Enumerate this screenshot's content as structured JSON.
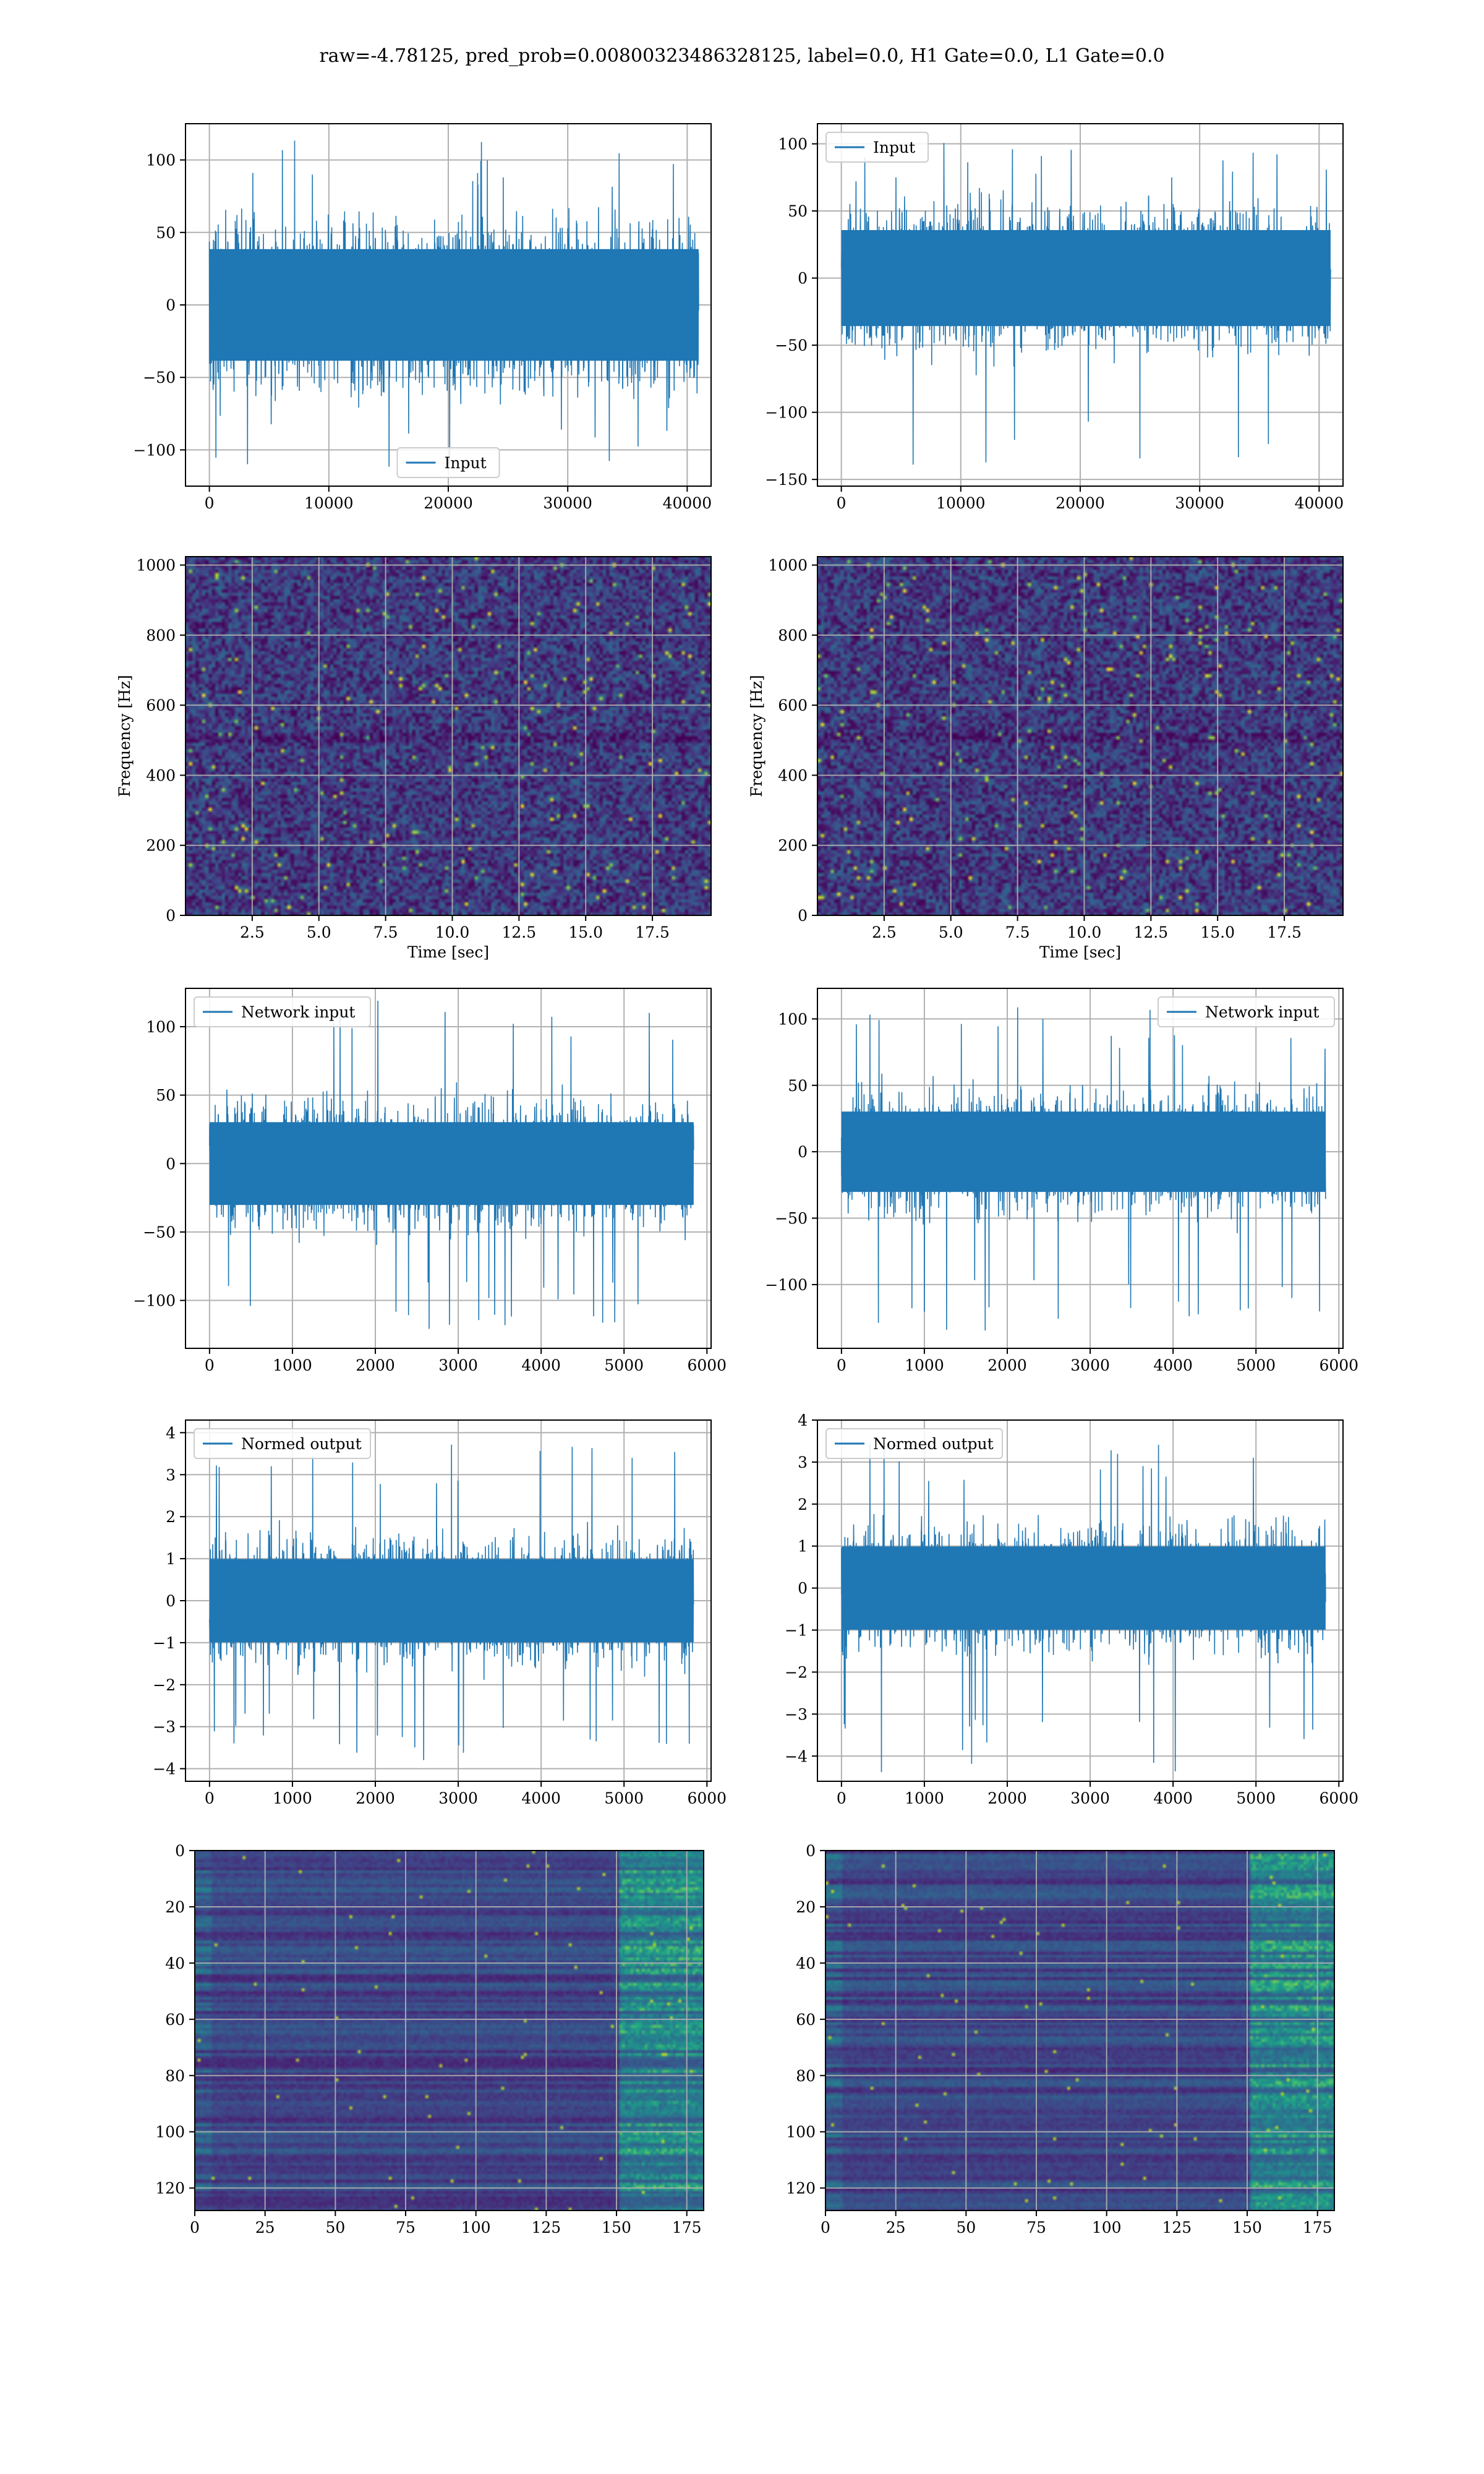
{
  "figure": {
    "suptitle": "raw=-4.78125, pred_prob=0.00800323486328125, label=0.0, H1 Gate=0.0, L1 Gate=0.0"
  },
  "colors": {
    "series": "#1f77b4",
    "grid": "#b0b0b0",
    "heat_low": "#440154",
    "heat_mid": "#31688e",
    "heat_hi": "#fde725"
  },
  "chart_data": [
    {
      "id": "r0c0",
      "type": "line",
      "legend": "Input",
      "legend_loc": "lower center",
      "xlim": [
        -2000,
        42000
      ],
      "ylim": [
        -125,
        125
      ],
      "xticks": [
        0,
        10000,
        20000,
        30000,
        40000
      ],
      "yticks": [
        -100,
        -50,
        0,
        50,
        100
      ],
      "xticklabels": [
        "0",
        "10000",
        "20000",
        "30000",
        "40000"
      ],
      "yticklabels": [
        "−100",
        "−50",
        "0",
        "50",
        "100"
      ],
      "xlabel": "",
      "ylabel": "",
      "grid": true,
      "x_range": [
        0,
        40960
      ],
      "envelope": {
        "typical_max": 70,
        "typical_min": -70,
        "peak_max": 116,
        "peak_min": -117
      }
    },
    {
      "id": "r0c1",
      "type": "line",
      "legend": "Input",
      "legend_loc": "upper left",
      "xlim": [
        -2000,
        42000
      ],
      "ylim": [
        -155,
        115
      ],
      "xticks": [
        0,
        10000,
        20000,
        30000,
        40000
      ],
      "yticks": [
        -150,
        -100,
        -50,
        0,
        50,
        100
      ],
      "xticklabels": [
        "0",
        "10000",
        "20000",
        "30000",
        "40000"
      ],
      "yticklabels": [
        "−150",
        "−100",
        "−50",
        "0",
        "50",
        "100"
      ],
      "xlabel": "",
      "ylabel": "",
      "grid": true,
      "x_range": [
        0,
        40960
      ],
      "envelope": {
        "typical_max": 65,
        "typical_min": -65,
        "peak_max": 102,
        "peak_min": -140
      }
    },
    {
      "id": "r1c0",
      "type": "heatmap",
      "variant": "spectrogram",
      "xlim": [
        0,
        19.7
      ],
      "ylim": [
        0,
        1024
      ],
      "xticks": [
        2.5,
        5.0,
        7.5,
        10.0,
        12.5,
        15.0,
        17.5
      ],
      "yticks": [
        0,
        200,
        400,
        600,
        800,
        1000
      ],
      "xticklabels": [
        "2.5",
        "5.0",
        "7.5",
        "10.0",
        "12.5",
        "15.0",
        "17.5"
      ],
      "yticklabels": [
        "0",
        "200",
        "400",
        "600",
        "800",
        "1000"
      ],
      "xlabel": "Time [sec]",
      "ylabel": "Frequency [Hz]",
      "grid": true,
      "colormap": "viridis"
    },
    {
      "id": "r1c1",
      "type": "heatmap",
      "variant": "spectrogram",
      "xlim": [
        0,
        19.7
      ],
      "ylim": [
        0,
        1024
      ],
      "xticks": [
        2.5,
        5.0,
        7.5,
        10.0,
        12.5,
        15.0,
        17.5
      ],
      "yticks": [
        0,
        200,
        400,
        600,
        800,
        1000
      ],
      "xticklabels": [
        "2.5",
        "5.0",
        "7.5",
        "10.0",
        "12.5",
        "15.0",
        "17.5"
      ],
      "yticklabels": [
        "0",
        "200",
        "400",
        "600",
        "800",
        "1000"
      ],
      "xlabel": "Time [sec]",
      "ylabel": "Frequency [Hz]",
      "grid": true,
      "colormap": "viridis"
    },
    {
      "id": "r2c0",
      "type": "line",
      "legend": "Network input",
      "legend_loc": "upper left",
      "xlim": [
        -290,
        6050
      ],
      "ylim": [
        -135,
        128
      ],
      "xticks": [
        0,
        1000,
        2000,
        3000,
        4000,
        5000,
        6000
      ],
      "yticks": [
        -100,
        -50,
        0,
        50,
        100
      ],
      "xticklabels": [
        "0",
        "1000",
        "2000",
        "3000",
        "4000",
        "5000",
        "6000"
      ],
      "yticklabels": [
        "−100",
        "−50",
        "0",
        "50",
        "100"
      ],
      "xlabel": "",
      "ylabel": "",
      "grid": true,
      "x_range": [
        0,
        5840
      ],
      "envelope": {
        "typical_max": 55,
        "typical_min": -55,
        "peak_max": 121,
        "peak_min": -122
      }
    },
    {
      "id": "r2c1",
      "type": "line",
      "legend": "Network input",
      "legend_loc": "upper right",
      "xlim": [
        -290,
        6050
      ],
      "ylim": [
        -148,
        123
      ],
      "xticks": [
        0,
        1000,
        2000,
        3000,
        4000,
        5000,
        6000
      ],
      "yticks": [
        -100,
        -50,
        0,
        50,
        100
      ],
      "xticklabels": [
        "0",
        "1000",
        "2000",
        "3000",
        "4000",
        "5000",
        "6000"
      ],
      "yticklabels": [
        "−100",
        "−50",
        "0",
        "50",
        "100"
      ],
      "xlabel": "",
      "ylabel": "",
      "grid": true,
      "x_range": [
        0,
        5840
      ],
      "envelope": {
        "typical_max": 55,
        "typical_min": -55,
        "peak_max": 110,
        "peak_min": -137
      }
    },
    {
      "id": "r3c0",
      "type": "line",
      "legend": "Normed output",
      "legend_loc": "upper left",
      "xlim": [
        -290,
        6050
      ],
      "ylim": [
        -4.3,
        4.3
      ],
      "xticks": [
        0,
        1000,
        2000,
        3000,
        4000,
        5000,
        6000
      ],
      "yticks": [
        -4,
        -3,
        -2,
        -1,
        0,
        1,
        2,
        3,
        4
      ],
      "xticklabels": [
        "0",
        "1000",
        "2000",
        "3000",
        "4000",
        "5000",
        "6000"
      ],
      "yticklabels": [
        "−4",
        "−3",
        "−2",
        "−1",
        "0",
        "1",
        "2",
        "3",
        "4"
      ],
      "xlabel": "",
      "ylabel": "",
      "grid": true,
      "x_range": [
        0,
        5840
      ],
      "envelope": {
        "typical_max": 1.8,
        "typical_min": -1.8,
        "peak_max": 3.9,
        "peak_min": -3.8
      }
    },
    {
      "id": "r3c1",
      "type": "line",
      "legend": "Normed output",
      "legend_loc": "upper left",
      "xlim": [
        -290,
        6050
      ],
      "ylim": [
        -4.6,
        4.0
      ],
      "xticks": [
        0,
        1000,
        2000,
        3000,
        4000,
        5000,
        6000
      ],
      "yticks": [
        -4,
        -3,
        -2,
        -1,
        0,
        1,
        2,
        3,
        4
      ],
      "xticklabels": [
        "0",
        "1000",
        "2000",
        "3000",
        "4000",
        "5000",
        "6000"
      ],
      "yticklabels": [
        "−4",
        "−3",
        "−2",
        "−1",
        "0",
        "1",
        "2",
        "3",
        "4"
      ],
      "xlabel": "",
      "ylabel": "",
      "grid": true,
      "x_range": [
        0,
        5840
      ],
      "envelope": {
        "typical_max": 1.8,
        "typical_min": -1.8,
        "peak_max": 3.6,
        "peak_min": -4.4
      }
    },
    {
      "id": "r4c0",
      "type": "heatmap",
      "variant": "features",
      "xlim": [
        0,
        181
      ],
      "ylim": [
        128,
        0
      ],
      "rows": 128,
      "cols": 181,
      "xticks": [
        0,
        25,
        50,
        75,
        100,
        125,
        150,
        175
      ],
      "yticks": [
        0,
        20,
        40,
        60,
        80,
        100,
        120
      ],
      "xticklabels": [
        "0",
        "25",
        "50",
        "75",
        "100",
        "125",
        "150",
        "175"
      ],
      "yticklabels": [
        "0",
        "20",
        "40",
        "60",
        "80",
        "100",
        "120"
      ],
      "xlabel": "",
      "ylabel": "",
      "grid": true,
      "colormap": "viridis"
    },
    {
      "id": "r4c1",
      "type": "heatmap",
      "variant": "features",
      "xlim": [
        0,
        181
      ],
      "ylim": [
        128,
        0
      ],
      "rows": 128,
      "cols": 181,
      "xticks": [
        0,
        25,
        50,
        75,
        100,
        125,
        150,
        175
      ],
      "yticks": [
        0,
        20,
        40,
        60,
        80,
        100,
        120
      ],
      "xticklabels": [
        "0",
        "25",
        "50",
        "75",
        "100",
        "125",
        "150",
        "175"
      ],
      "yticklabels": [
        "0",
        "20",
        "40",
        "60",
        "80",
        "100",
        "120"
      ],
      "xlabel": "",
      "ylabel": "",
      "grid": true,
      "colormap": "viridis"
    }
  ]
}
